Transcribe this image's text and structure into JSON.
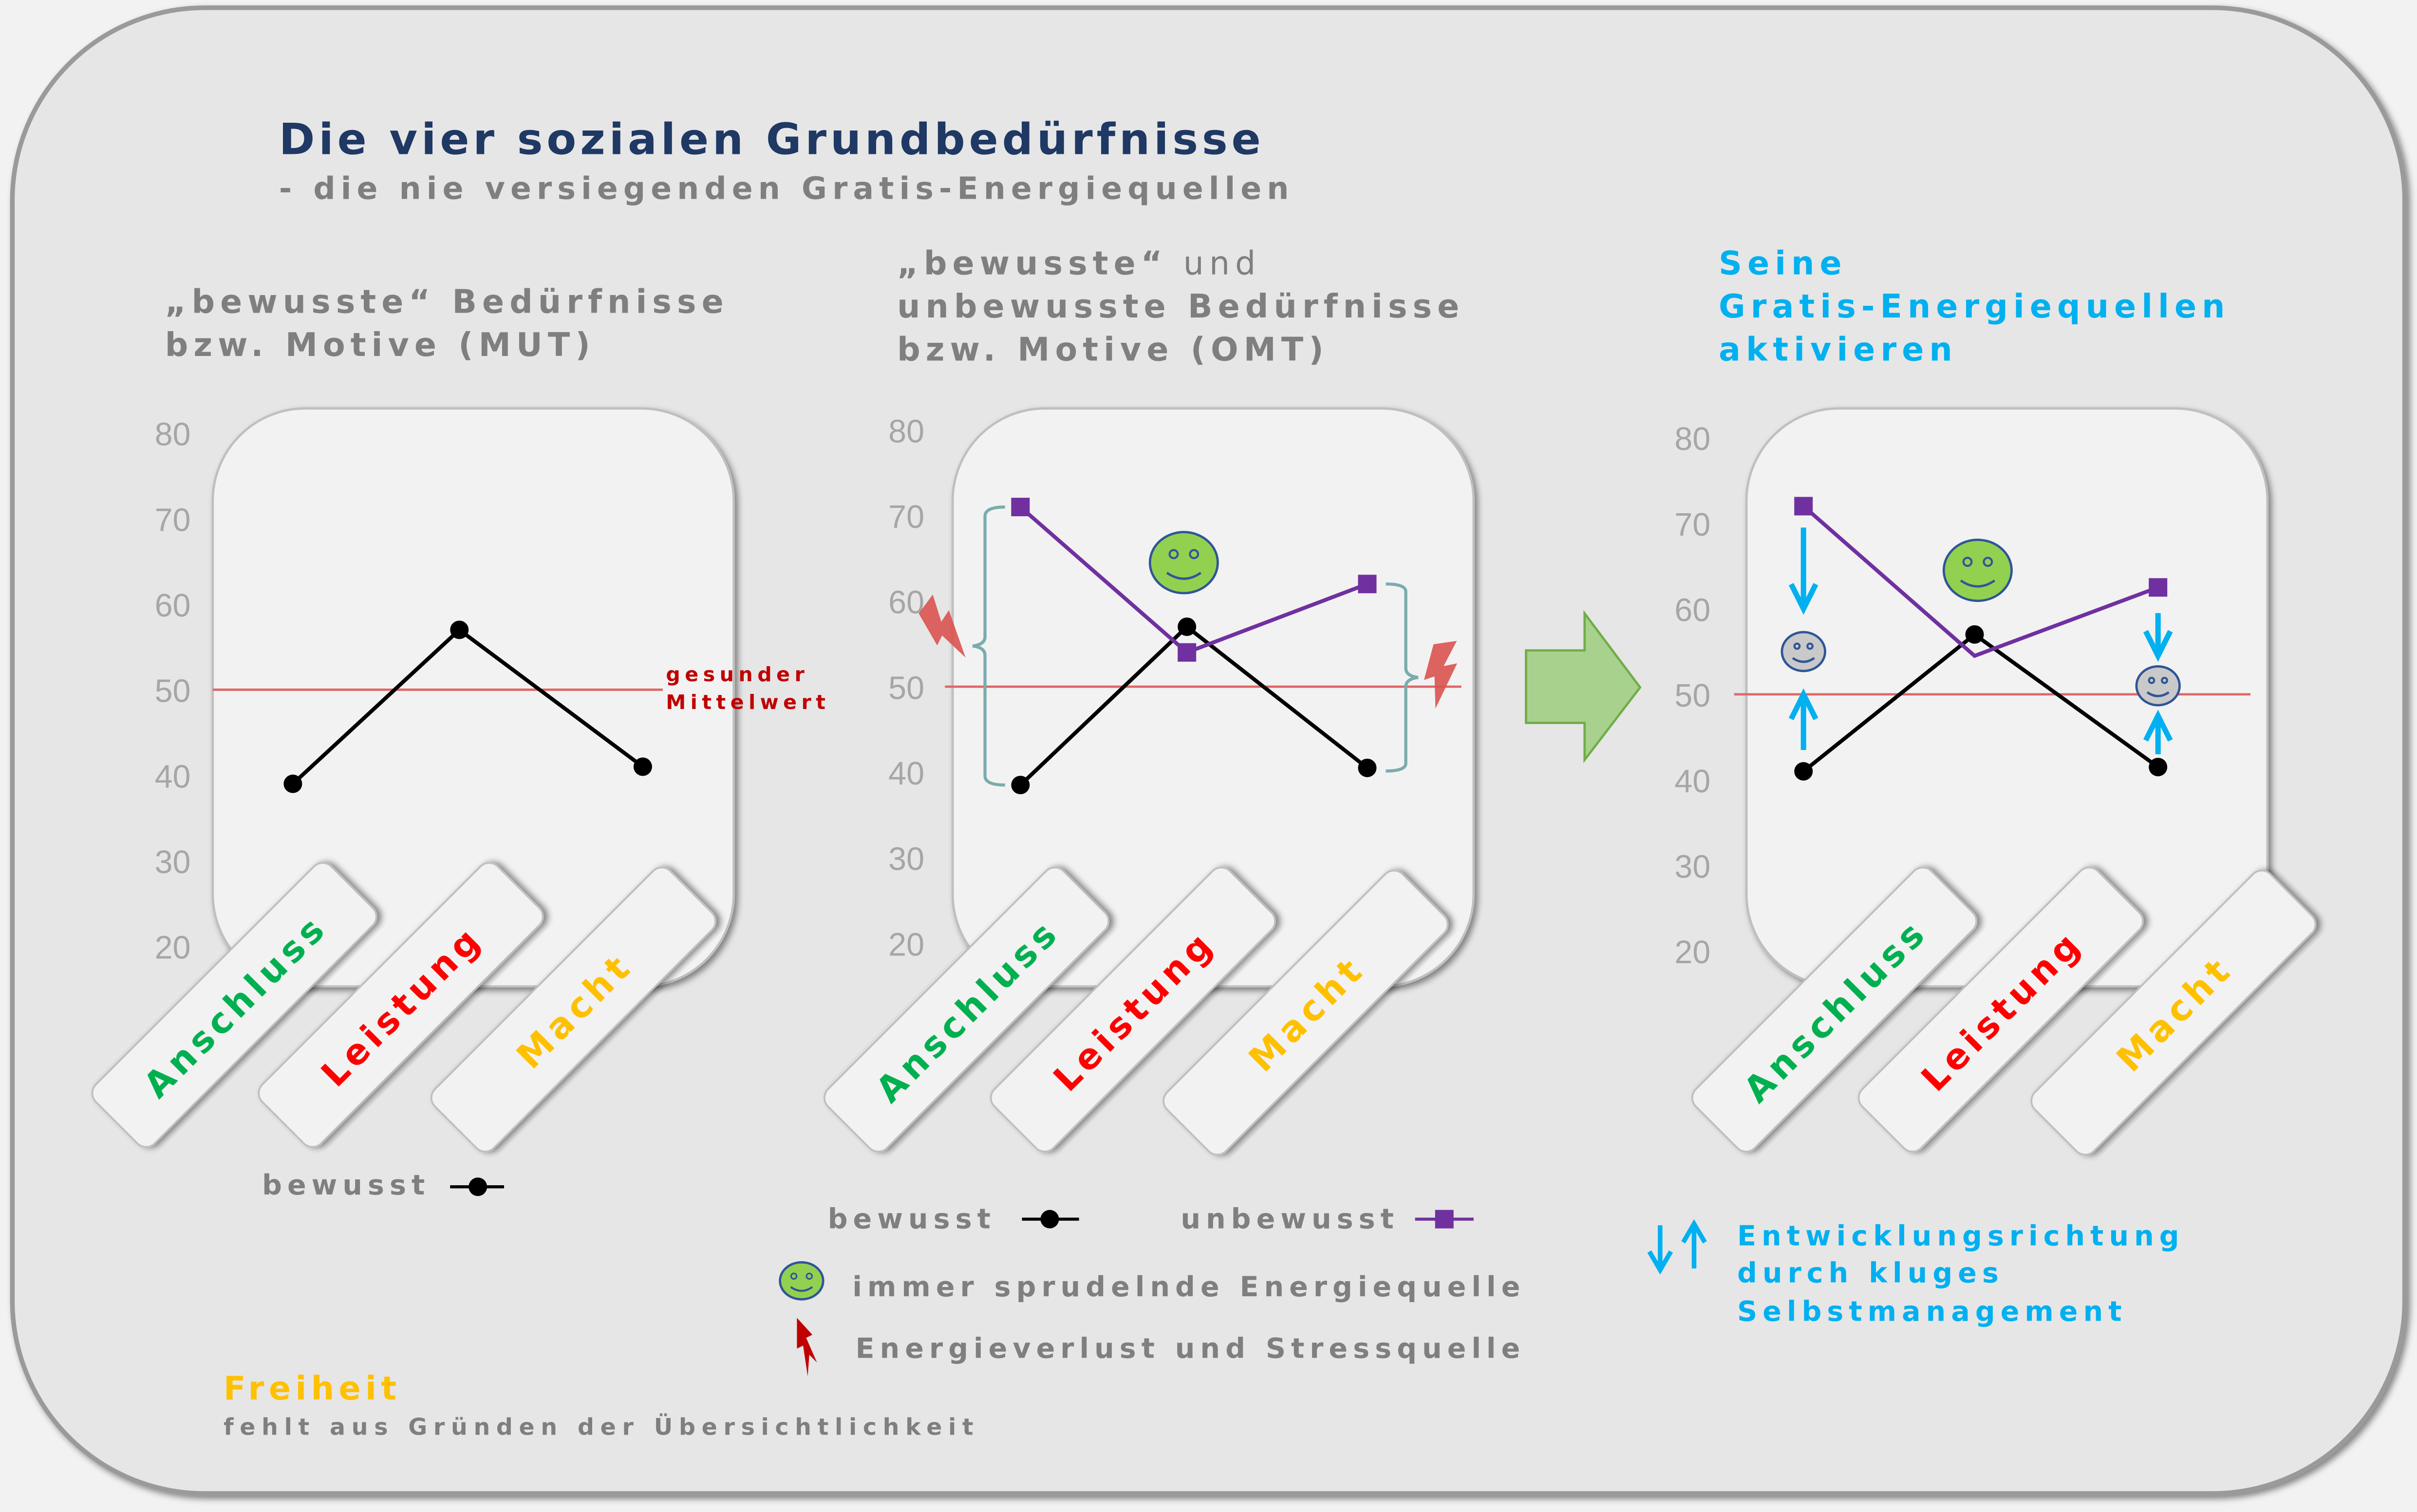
{
  "title": "Die vier sozialen Grundbedürfnisse",
  "subtitle": "- die nie versiegenden Gratis-Energiequellen",
  "colors": {
    "title": "#1f3864",
    "accent": "#00b0f0",
    "bewusst": "#000000",
    "unbewusst": "#7030a0",
    "mittelwert": "#e06666",
    "anschluss": "#00b050",
    "leistung": "#ff0000",
    "macht": "#ffc000",
    "brace": "#7aacac",
    "lightning": "#d9534f",
    "arrow": "#a9d18e"
  },
  "panels": [
    {
      "heading": [
        "„bewusste“ Bedürfnisse",
        "bzw. Motive (MUT)"
      ]
    },
    {
      "heading_first_bold": "„bewusste“",
      "heading_first_normal": " und",
      "heading": [
        "unbewusste Bedürfnisse",
        "bzw. Motive (OMT)"
      ]
    },
    {
      "heading": [
        "Seine",
        "Gratis-Energiequellen",
        "aktivieren"
      ]
    }
  ],
  "mittelwert_label": [
    "gesunder",
    "Mittelwert"
  ],
  "legend1": {
    "bewusst": "bewusst"
  },
  "legend2": {
    "bewusst": "bewusst",
    "unbewusst": "unbewusst",
    "smiley": "immer sprudelnde Energiequelle",
    "lightning": "Energieverlust und Stressquelle"
  },
  "legend3": {
    "arrows": [
      "Entwicklungsrichtung",
      "durch kluges",
      "Selbstmanagement"
    ]
  },
  "footer": {
    "freiheit": "Freiheit",
    "note": "fehlt aus Gründen der Übersichtlichkeit"
  },
  "chart_data": [
    {
      "type": "line",
      "categories": [
        "Anschluss",
        "Leistung",
        "Macht"
      ],
      "ylim": [
        20,
        80
      ],
      "yticks": [
        80,
        70,
        60,
        50,
        40,
        30,
        20
      ],
      "reference_line": 50,
      "series": [
        {
          "name": "bewusst",
          "marker": "circle",
          "values": [
            39,
            57,
            41
          ]
        }
      ]
    },
    {
      "type": "line",
      "categories": [
        "Anschluss",
        "Leistung",
        "Macht"
      ],
      "ylim": [
        20,
        80
      ],
      "yticks": [
        80,
        70,
        60,
        50,
        40,
        30,
        20
      ],
      "reference_line": 50,
      "series": [
        {
          "name": "bewusst",
          "marker": "circle",
          "values": [
            38.5,
            57,
            40.5
          ]
        },
        {
          "name": "unbewusst",
          "marker": "square",
          "values": [
            71,
            54,
            62
          ]
        }
      ],
      "annotations": {
        "smiley_at": "Leistung",
        "lightning_at": [
          "Anschluss",
          "Macht"
        ]
      }
    },
    {
      "type": "line",
      "categories": [
        "Anschluss",
        "Leistung",
        "Macht"
      ],
      "ylim": [
        20,
        80
      ],
      "yticks": [
        80,
        70,
        60,
        50,
        40,
        30,
        20
      ],
      "reference_line": 50,
      "series": [
        {
          "name": "bewusst",
          "marker": "circle",
          "values": [
            41,
            57,
            41.5
          ]
        },
        {
          "name": "unbewusst",
          "marker": "square",
          "values": [
            72,
            54.5,
            62.5
          ]
        }
      ],
      "annotations": {
        "smiley_at": "Leistung",
        "target_smileys": {
          "Anschluss": 55,
          "Macht": 51
        }
      }
    }
  ]
}
